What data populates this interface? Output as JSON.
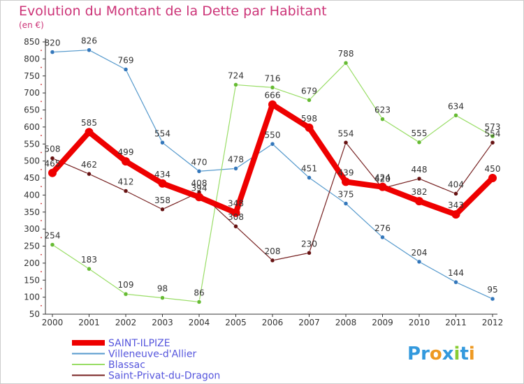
{
  "chart_data": {
    "type": "line",
    "title": "Evolution du Montant de la Dette par Habitant",
    "subtitle": "(en €)",
    "x": [
      "2000",
      "2001",
      "2002",
      "2003",
      "2004",
      "2005",
      "2006",
      "2007",
      "2008",
      "2009",
      "2010",
      "2011",
      "2012"
    ],
    "y_ticks": [
      "50",
      "100",
      "150",
      "200",
      "250",
      "300",
      "350",
      "400",
      "450",
      "500",
      "550",
      "600",
      "650",
      "700",
      "750",
      "800",
      "850"
    ],
    "ylim": [
      50,
      850
    ],
    "grid": false,
    "legend_placement": "bottom-left",
    "series": [
      {
        "name": "Villeneuve-d'Allier",
        "color": "#5599cc",
        "marker": "#3377bb",
        "width": 1.2,
        "values": [
          820,
          826,
          769,
          554,
          470,
          478,
          550,
          451,
          375,
          276,
          204,
          144,
          95
        ]
      },
      {
        "name": "Blassac",
        "color": "#99dd66",
        "marker": "#66bb33",
        "width": 1.2,
        "values": [
          254,
          183,
          109,
          98,
          86,
          724,
          716,
          679,
          788,
          623,
          555,
          634,
          573
        ]
      },
      {
        "name": "Saint-Privat-du-Dragon",
        "color": "#772222",
        "marker": "#661111",
        "width": 1.2,
        "values": [
          508,
          462,
          412,
          358,
          408,
          308,
          208,
          230,
          554,
          420,
          448,
          404,
          554
        ]
      },
      {
        "name": "SAINT-ILPIZE",
        "color": "#ee0000",
        "marker": "#ee0000",
        "width": 8,
        "values": [
          465,
          585,
          499,
          434,
          394,
          348,
          666,
          598,
          439,
          424,
          382,
          343,
          450
        ]
      }
    ],
    "legend_order": [
      "SAINT-ILPIZE",
      "Villeneuve-d'Allier",
      "Blassac",
      "Saint-Privat-du-Dragon"
    ]
  },
  "logo": {
    "letters": [
      {
        "ch": "P",
        "color": "#3399dd"
      },
      {
        "ch": "r",
        "color": "#3399dd"
      },
      {
        "ch": "o",
        "color": "#ee9922"
      },
      {
        "ch": "x",
        "color": "#3399dd"
      },
      {
        "ch": "i",
        "color": "#88cc33"
      },
      {
        "ch": "t",
        "color": "#3399dd"
      },
      {
        "ch": "i",
        "color": "#ee9922"
      }
    ]
  }
}
